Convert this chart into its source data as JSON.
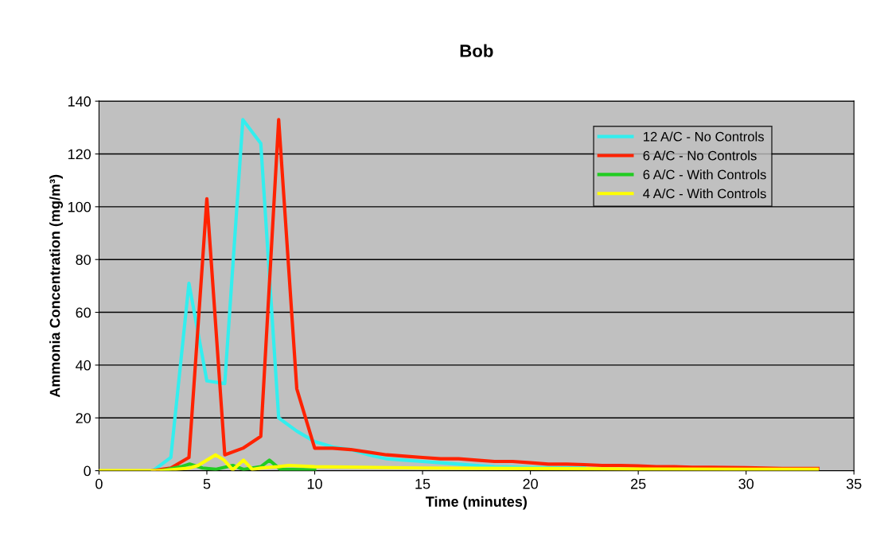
{
  "chart_data": {
    "type": "line",
    "title": "Bob",
    "xlabel": "Time (minutes)",
    "ylabel": "Ammonia Concentration (mg/m³)",
    "xlim": [
      0,
      35
    ],
    "xticks": [
      0,
      5,
      10,
      15,
      20,
      25,
      30,
      35
    ],
    "ylim": [
      0,
      140
    ],
    "yticks": [
      0,
      20,
      40,
      60,
      80,
      100,
      120,
      140
    ],
    "grid": "y",
    "legend": "top right",
    "line_style": "solid",
    "series": [
      {
        "name": "12 A/C - No Controls",
        "color": "#33eeee",
        "x": [
          2.5,
          3.33,
          4.17,
          5.0,
          5.83,
          6.67,
          7.5,
          8.33,
          9.17,
          10.0,
          10.83,
          11.67,
          12.5,
          13.33,
          14.17,
          15.0,
          15.83,
          16.67,
          17.5,
          18.33,
          20.0,
          22.5
        ],
        "values": [
          0,
          5,
          71,
          34,
          33,
          133,
          124,
          20,
          15,
          11,
          9,
          8,
          6,
          4.5,
          4,
          3.5,
          3,
          2.5,
          2,
          1.5,
          1.2,
          1
        ]
      },
      {
        "name": "6 A/C - No Controls",
        "color": "#ff2200",
        "x": [
          2.5,
          3.33,
          4.17,
          5.0,
          5.83,
          6.67,
          7.5,
          8.33,
          9.17,
          10.0,
          10.83,
          11.67,
          12.5,
          13.33,
          14.17,
          15.0,
          15.83,
          16.67,
          17.5,
          18.33,
          19.17,
          20.0,
          20.83,
          21.67,
          22.5,
          23.33,
          24.17,
          25.0,
          25.83,
          26.67,
          27.5,
          28.33,
          29.17,
          30.0,
          30.83,
          31.67,
          32.5,
          33.33
        ],
        "values": [
          0,
          1,
          5,
          103,
          6,
          8.5,
          13,
          133,
          31,
          8.5,
          8.5,
          8,
          7,
          6,
          5.5,
          5,
          4.5,
          4.5,
          4,
          3.5,
          3.5,
          3,
          2.5,
          2.5,
          2.3,
          2,
          2,
          1.8,
          1.5,
          1.5,
          1.3,
          1.3,
          1.2,
          1.1,
          1,
          0.8,
          0.8,
          0.8
        ]
      },
      {
        "name": "6 A/C - With Controls",
        "color": "#22cc22",
        "x": [
          2.9,
          3.8,
          4.2,
          4.8,
          5.4,
          6.2,
          6.7,
          7.5,
          7.9,
          8.4,
          10
        ],
        "values": [
          0,
          1.5,
          2.5,
          1,
          0.5,
          2,
          0.5,
          1.5,
          4,
          0.5,
          0.3
        ]
      },
      {
        "name": "4 A/C - With Controls",
        "color": "#ffff00",
        "x": [
          0,
          2.9,
          4.2,
          4.6,
          5.4,
          5.8,
          6.2,
          6.7,
          7.1,
          7.5,
          8.3,
          8.8,
          10,
          15,
          20,
          25,
          30,
          33.3
        ],
        "values": [
          0,
          0,
          1,
          2,
          6,
          4,
          0.3,
          4,
          0.5,
          1,
          1.5,
          2,
          1.5,
          1,
          0.8,
          0.6,
          0.5,
          0.5
        ]
      }
    ]
  }
}
